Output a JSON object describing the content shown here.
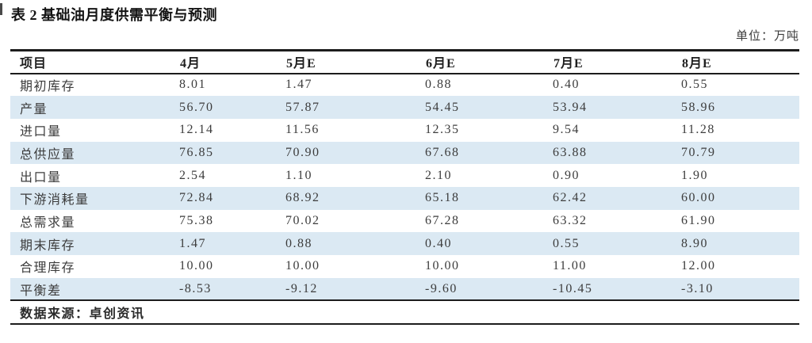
{
  "title": "表 2 基础油月度供需平衡与预测",
  "unit_label": "单位：万吨",
  "table": {
    "columns": [
      "项目",
      "4月",
      "5月E",
      "6月E",
      "7月E",
      "8月E"
    ],
    "rows": [
      {
        "label": "期初库存",
        "values": [
          "8.01",
          "1.47",
          "0.88",
          "0.40",
          "0.55"
        ]
      },
      {
        "label": "产量",
        "values": [
          "56.70",
          "57.87",
          "54.45",
          "53.94",
          "58.96"
        ]
      },
      {
        "label": "进口量",
        "values": [
          "12.14",
          "11.56",
          "12.35",
          "9.54",
          "11.28"
        ]
      },
      {
        "label": "总供应量",
        "values": [
          "76.85",
          "70.90",
          "67.68",
          "63.88",
          "70.79"
        ]
      },
      {
        "label": "出口量",
        "values": [
          "2.54",
          "1.10",
          "2.10",
          "0.90",
          "1.90"
        ]
      },
      {
        "label": "下游消耗量",
        "values": [
          "72.84",
          "68.92",
          "65.18",
          "62.42",
          "60.00"
        ]
      },
      {
        "label": "总需求量",
        "values": [
          "75.38",
          "70.02",
          "67.28",
          "63.32",
          "61.90"
        ]
      },
      {
        "label": "期末库存",
        "values": [
          "1.47",
          "0.88",
          "0.40",
          "0.55",
          "8.90"
        ]
      },
      {
        "label": "合理库存",
        "values": [
          "10.00",
          "10.00",
          "10.00",
          "11.00",
          "12.00"
        ]
      },
      {
        "label": "平衡差",
        "values": [
          "-8.53",
          "-9.12",
          "-9.60",
          "-10.45",
          "-3.10"
        ]
      }
    ],
    "source": "数据来源：卓创资讯"
  },
  "colors": {
    "row_stripe": "#dbe9f3",
    "border": "#1c1c1c",
    "body_text": "#3c3c3c"
  }
}
